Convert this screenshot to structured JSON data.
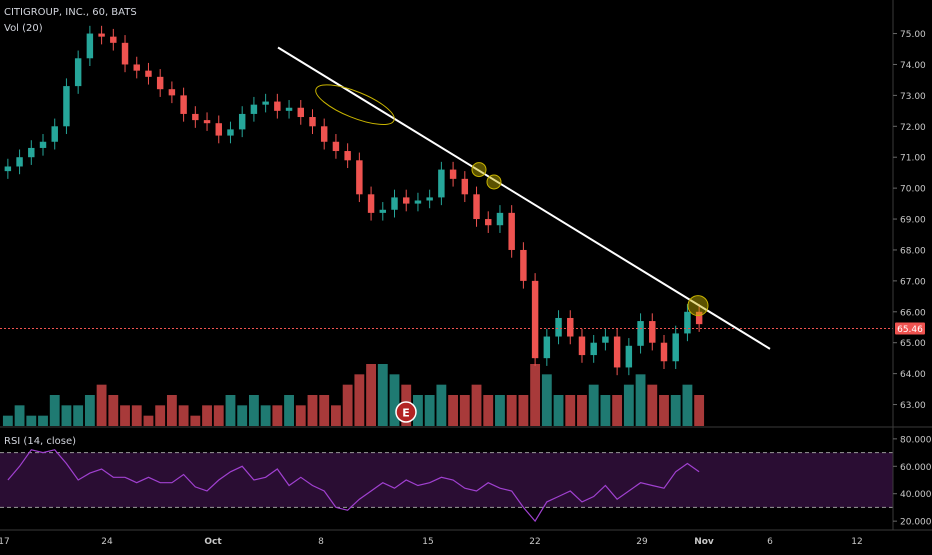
{
  "header": {
    "symbol_line": "CITIGROUP, INC., 60, BATS",
    "vol_label": "Vol (20)"
  },
  "rsi_label": "RSI (14, close)",
  "earnings_marker": "E",
  "colors": {
    "background": "#000000",
    "up": "#26a69a",
    "down": "#ef5350",
    "vol_up": "#1f7a72",
    "vol_down": "#a83a3a",
    "trendline": "#ffffff",
    "highlight": "#c8b400",
    "rsi_line": "#a040d0",
    "rsi_band": "#2a0d33",
    "price_line": "#ef5350",
    "axis_text": "#c8c8c8"
  },
  "chart_data": [
    {
      "type": "candlestick",
      "title": "CITIGROUP, INC., 60, BATS",
      "y_axis": {
        "ticks": [
          "75.00",
          "74.00",
          "73.00",
          "72.00",
          "71.00",
          "70.00",
          "69.00",
          "68.00",
          "67.00",
          "66.00",
          "65.00",
          "64.00",
          "63.00"
        ],
        "range": [
          62.5,
          75.6
        ]
      },
      "x_axis": {
        "ticks": [
          "17",
          "24",
          "Oct",
          "8",
          "15",
          "22",
          "29",
          "Nov",
          "6",
          "12"
        ]
      },
      "current_price": "65.46",
      "trendline": {
        "from_price": 74.55,
        "to_price": 64.8
      },
      "highlighted_points": [
        {
          "label": "ellipse",
          "price": 72.7
        },
        {
          "label": "touch-1",
          "price": 70.6
        },
        {
          "label": "touch-2",
          "price": 70.2
        },
        {
          "label": "touch-3",
          "price": 66.2
        }
      ],
      "price_path": [
        70.7,
        71.0,
        71.3,
        71.5,
        72.0,
        73.3,
        74.2,
        75.0,
        74.9,
        74.7,
        74.0,
        73.8,
        73.6,
        73.2,
        73.0,
        72.4,
        72.2,
        72.1,
        71.7,
        71.9,
        72.4,
        72.7,
        72.8,
        72.5,
        72.6,
        72.3,
        72.0,
        71.5,
        71.2,
        70.9,
        69.8,
        69.2,
        69.3,
        69.7,
        69.5,
        69.6,
        69.7,
        70.6,
        70.3,
        69.8,
        69.0,
        68.8,
        69.2,
        68.0,
        67.0,
        64.5,
        65.2,
        65.8,
        65.2,
        64.6,
        65.0,
        65.2,
        64.2,
        64.9,
        65.7,
        65.0,
        64.4,
        65.3,
        66.0,
        65.6
      ]
    },
    {
      "type": "bar",
      "title": "Vol (20)",
      "values": [
        1,
        2,
        1,
        1,
        3,
        2,
        2,
        3,
        4,
        3,
        2,
        2,
        1,
        2,
        3,
        2,
        1,
        2,
        2,
        3,
        2,
        3,
        2,
        2,
        3,
        2,
        3,
        3,
        2,
        4,
        5,
        6,
        6,
        5,
        4,
        3,
        3,
        4,
        3,
        3,
        4,
        3,
        3,
        3,
        3,
        6,
        5,
        3,
        3,
        3,
        4,
        3,
        3,
        4,
        5,
        4,
        3,
        3,
        4,
        3
      ]
    },
    {
      "type": "line",
      "title": "RSI (14, close)",
      "y_axis": {
        "ticks": [
          "80.0000",
          "60.0000",
          "40.0000",
          "20.0000"
        ],
        "range": [
          15,
          85
        ]
      },
      "bands": [
        70,
        30
      ],
      "values": [
        50,
        60,
        72,
        70,
        72,
        62,
        50,
        55,
        58,
        52,
        52,
        48,
        52,
        48,
        48,
        54,
        45,
        42,
        50,
        56,
        60,
        50,
        52,
        58,
        46,
        52,
        46,
        42,
        30,
        28,
        36,
        42,
        48,
        44,
        50,
        46,
        48,
        52,
        50,
        44,
        42,
        48,
        44,
        42,
        30,
        20,
        34,
        38,
        42,
        34,
        38,
        46,
        36,
        42,
        48,
        46,
        44,
        56,
        62,
        56
      ]
    }
  ]
}
